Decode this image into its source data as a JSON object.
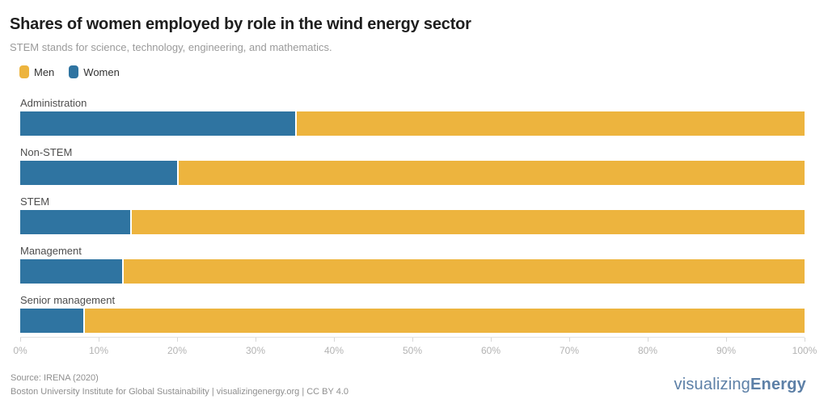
{
  "page": {
    "title": "Shares of women employed by role in the wind energy sector",
    "subtitle": "STEM stands for science, technology, engineering, and mathematics."
  },
  "legend": [
    {
      "label": "Men",
      "color": "#edb43e"
    },
    {
      "label": "Women",
      "color": "#2f74a1"
    }
  ],
  "chart_data": {
    "type": "bar",
    "orientation": "horizontal",
    "stacked": true,
    "unit": "percent",
    "title": "Shares of women employed by role in the wind energy sector",
    "categories": [
      "Administration",
      "Non-STEM",
      "STEM",
      "Management",
      "Senior management"
    ],
    "series": [
      {
        "name": "Women",
        "color": "#2f74a1",
        "values": [
          35,
          20,
          14,
          13,
          8
        ]
      },
      {
        "name": "Men",
        "color": "#edb43e",
        "values": [
          65,
          80,
          86,
          87,
          92
        ]
      }
    ],
    "x_axis": {
      "min": 0,
      "max": 100,
      "tick_labels": [
        "0%",
        "10%",
        "20%",
        "30%",
        "40%",
        "50%",
        "60%",
        "70%",
        "80%",
        "90%",
        "100%"
      ]
    },
    "grid": false,
    "legend_position": "top-left"
  },
  "footer": {
    "source": "Source: IRENA (2020)",
    "attribution": "Boston University Institute for Global Sustainability | visualizingenergy.org | CC BY 4.0"
  },
  "logo": {
    "normal": "visualizing",
    "bold": "Energy"
  }
}
